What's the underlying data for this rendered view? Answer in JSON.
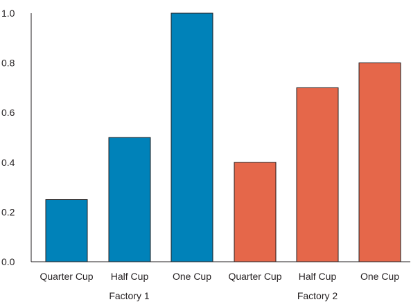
{
  "chart_data": {
    "type": "bar",
    "title": "",
    "xlabel": "",
    "ylabel": "",
    "ylim": [
      0,
      1.0
    ],
    "yticks": [
      "0.0",
      "0.2",
      "0.4",
      "0.6",
      "0.8",
      "1.0"
    ],
    "grid": false,
    "groups": [
      {
        "label": "Factory 1",
        "color": "#0082b9",
        "categories": [
          "Quarter Cup",
          "Half Cup",
          "One Cup"
        ],
        "values": [
          0.25,
          0.5,
          1.0
        ]
      },
      {
        "label": "Factory 2",
        "color": "#e5674a",
        "categories": [
          "Quarter Cup",
          "Half Cup",
          "One Cup"
        ],
        "values": [
          0.4,
          0.7,
          0.8
        ]
      }
    ]
  }
}
